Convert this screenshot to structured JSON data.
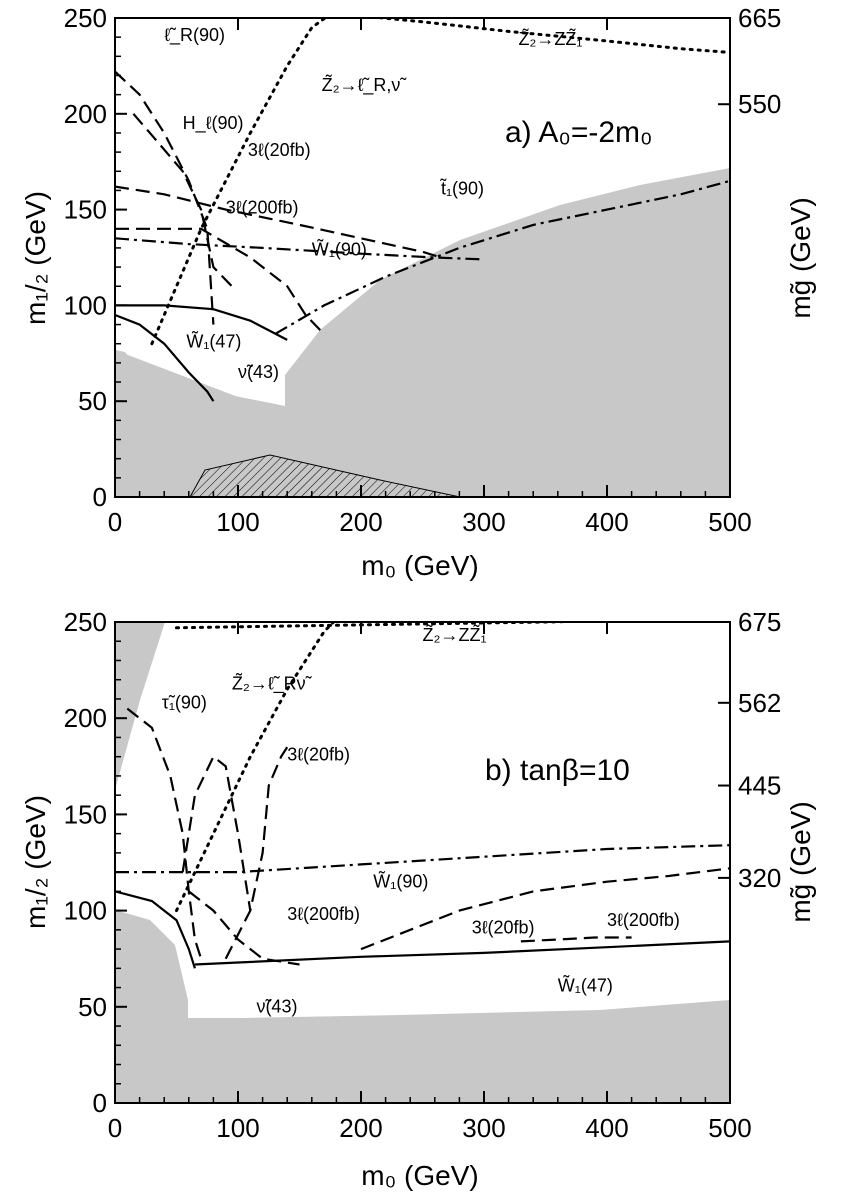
{
  "figure": {
    "colors": {
      "excluded": "#c8c8c8",
      "line": "#000000",
      "background": "#ffffff"
    }
  },
  "chart_data": [
    {
      "type": "line",
      "panel_label": "a) A₀=-2m₀",
      "xlabel": "m₀ (GeV)",
      "ylabel": "m₁/₂ (GeV)",
      "y2label": "mg̃ (GeV)",
      "xlim": [
        0,
        500
      ],
      "ylim": [
        0,
        250
      ],
      "xticks": [
        0,
        100,
        200,
        300,
        400,
        500
      ],
      "xtick_labels": [
        "0",
        "100",
        "200",
        "300",
        "400",
        "500"
      ],
      "yticks": [
        0,
        50,
        100,
        150,
        200,
        250
      ],
      "ytick_labels": [
        "0",
        "50",
        "100",
        "150",
        "200",
        "250"
      ],
      "y2ticks": [
        {
          "y": 250,
          "label": "665"
        },
        {
          "y": 205,
          "label": "550"
        }
      ],
      "annotations": [
        {
          "text": "ℓ̃_R(90)",
          "x": 40,
          "y": 238
        },
        {
          "text": "H_ℓ(90)",
          "x": 55,
          "y": 192
        },
        {
          "text": "3ℓ(20fb)",
          "x": 108,
          "y": 178
        },
        {
          "text": "3ℓ(200fb)",
          "x": 90,
          "y": 148
        },
        {
          "text": "W̃₁(90)",
          "x": 160,
          "y": 126
        },
        {
          "text": "t̃₁(90)",
          "x": 265,
          "y": 158
        },
        {
          "text": "Z̃₂→ℓ̃_R,ν̃",
          "x": 168,
          "y": 212
        },
        {
          "text": "Z̃₂→ZZ̃₁",
          "x": 328,
          "y": 236
        },
        {
          "text": "W̃₁(47)",
          "x": 58,
          "y": 78
        },
        {
          "text": "ν̃(43)",
          "x": 100,
          "y": 62
        }
      ],
      "series": [
        {
          "id": "selR90",
          "style": "dashed",
          "x": [
            0,
            20,
            40,
            60,
            75,
            80
          ],
          "y": [
            222,
            210,
            190,
            165,
            140,
            90
          ]
        },
        {
          "id": "hl90",
          "style": "dashed",
          "x": [
            15,
            35,
            55,
            70,
            80,
            95
          ],
          "y": [
            200,
            185,
            170,
            150,
            120,
            110
          ]
        },
        {
          "id": "l3_20",
          "style": "dashed",
          "x": [
            0,
            40,
            90,
            150,
            200,
            250,
            265
          ],
          "y": [
            162,
            158,
            150,
            142,
            135,
            128,
            125
          ]
        },
        {
          "id": "l3_200",
          "style": "dashed",
          "x": [
            0,
            40,
            70,
            110,
            140,
            155,
            170
          ],
          "y": [
            140,
            140,
            140,
            125,
            110,
            95,
            85
          ]
        },
        {
          "id": "w90",
          "style": "dashdot",
          "x": [
            0,
            60,
            120,
            200,
            260,
            300
          ],
          "y": [
            135,
            132,
            130,
            127,
            125,
            124
          ]
        },
        {
          "id": "t90",
          "style": "dashdot",
          "x": [
            130,
            170,
            220,
            280,
            340,
            400,
            460,
            500
          ],
          "y": [
            85,
            100,
            115,
            130,
            142,
            150,
            158,
            165
          ]
        },
        {
          "id": "z2lr",
          "style": "dotted",
          "x": [
            30,
            70,
            110,
            140,
            160,
            175
          ],
          "y": [
            80,
            140,
            190,
            225,
            245,
            252
          ]
        },
        {
          "id": "z2zz",
          "style": "dotted",
          "x": [
            170,
            250,
            320,
            400,
            460,
            500
          ],
          "y": [
            253,
            248,
            243,
            238,
            234,
            232
          ]
        },
        {
          "id": "w47",
          "style": "solid",
          "x": [
            0,
            40,
            80,
            110,
            140
          ],
          "y": [
            100,
            100,
            98,
            92,
            82
          ]
        },
        {
          "id": "nu43",
          "style": "solid",
          "x": [
            0,
            20,
            40,
            60,
            75,
            80
          ],
          "y": [
            95,
            90,
            80,
            65,
            55,
            50
          ]
        }
      ]
    },
    {
      "type": "line",
      "panel_label": "b) tanβ=10",
      "xlabel": "m₀ (GeV)",
      "ylabel": "m₁/₂ (GeV)",
      "y2label": "mg̃ (GeV)",
      "xlim": [
        0,
        500
      ],
      "ylim": [
        0,
        250
      ],
      "xticks": [
        0,
        100,
        200,
        300,
        400,
        500
      ],
      "xtick_labels": [
        "0",
        "100",
        "200",
        "300",
        "400",
        "500"
      ],
      "yticks": [
        0,
        50,
        100,
        150,
        200,
        250
      ],
      "ytick_labels": [
        "0",
        "50",
        "100",
        "150",
        "200",
        "250"
      ],
      "y2ticks": [
        {
          "y": 250,
          "label": "675"
        },
        {
          "y": 208,
          "label": "562"
        },
        {
          "y": 165,
          "label": "445"
        },
        {
          "y": 117,
          "label": "320"
        }
      ],
      "annotations": [
        {
          "text": "τ̃₁(90)",
          "x": 38,
          "y": 205
        },
        {
          "text": "Z̃₂→ℓ̃_Rν̃",
          "x": 95,
          "y": 215
        },
        {
          "text": "3ℓ(20fb)",
          "x": 140,
          "y": 178
        },
        {
          "text": "Z̃₂→ZZ̃₁",
          "x": 250,
          "y": 240
        },
        {
          "text": "W̃₁(90)",
          "x": 210,
          "y": 112
        },
        {
          "text": "3ℓ(200fb)",
          "x": 140,
          "y": 95
        },
        {
          "text": "3ℓ(20fb)",
          "x": 290,
          "y": 88
        },
        {
          "text": "3ℓ(200fb)",
          "x": 400,
          "y": 92
        },
        {
          "text": "W̃₁(47)",
          "x": 360,
          "y": 58
        },
        {
          "text": "ν̃(43)",
          "x": 115,
          "y": 47
        }
      ],
      "series": [
        {
          "id": "tau90",
          "style": "dashed",
          "x": [
            10,
            30,
            45,
            55,
            60,
            65,
            70
          ],
          "y": [
            205,
            195,
            170,
            140,
            110,
            85,
            75
          ]
        },
        {
          "id": "l3_20a",
          "style": "dashed",
          "x": [
            55,
            65,
            80,
            90,
            100,
            110
          ],
          "y": [
            120,
            160,
            180,
            175,
            140,
            100
          ]
        },
        {
          "id": "l3_20b",
          "style": "dashed",
          "x": [
            90,
            110,
            120,
            125,
            135,
            140
          ],
          "y": [
            75,
            100,
            130,
            165,
            180,
            185
          ]
        },
        {
          "id": "l3_20c",
          "style": "dashed",
          "x": [
            200,
            280,
            340,
            400,
            450,
            500
          ],
          "y": [
            80,
            100,
            110,
            115,
            118,
            122
          ]
        },
        {
          "id": "w90",
          "style": "dashdot",
          "x": [
            0,
            100,
            200,
            300,
            400,
            500
          ],
          "y": [
            120,
            120,
            124,
            128,
            132,
            134
          ]
        },
        {
          "id": "l3_200",
          "style": "dashed",
          "x": [
            60,
            80,
            100,
            120,
            150
          ],
          "y": [
            110,
            100,
            85,
            75,
            72
          ]
        },
        {
          "id": "l3_200b",
          "style": "dashed",
          "x": [
            330,
            360,
            390,
            420
          ],
          "y": [
            84,
            85,
            86,
            86
          ]
        },
        {
          "id": "z2lr",
          "style": "dotted",
          "x": [
            50,
            80,
            110,
            140,
            170,
            190
          ],
          "y": [
            100,
            140,
            180,
            215,
            245,
            258
          ]
        },
        {
          "id": "z2zz",
          "style": "dotted",
          "x": [
            50,
            150,
            250,
            350,
            430,
            500
          ],
          "y": [
            247,
            248,
            249,
            250,
            251,
            252
          ]
        },
        {
          "id": "w47",
          "style": "solid",
          "x": [
            0,
            30,
            50,
            60,
            65
          ],
          "y": [
            110,
            105,
            95,
            80,
            70
          ]
        },
        {
          "id": "w_band",
          "style": "solid",
          "x": [
            65,
            100,
            200,
            300,
            400,
            500
          ],
          "y": [
            72,
            73,
            76,
            78,
            81,
            84
          ]
        }
      ]
    }
  ]
}
